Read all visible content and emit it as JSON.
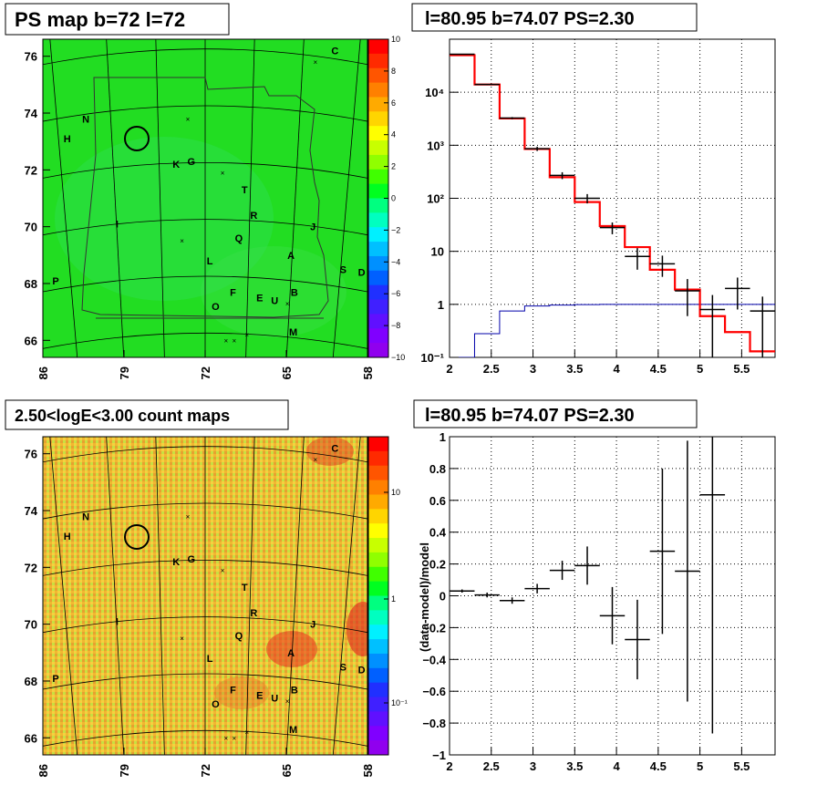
{
  "panels": {
    "ps_map": {
      "title": "PS map b=72 l=72",
      "xticks": [
        "86",
        "79",
        "72",
        "65",
        "58"
      ],
      "yticks": [
        "76",
        "74",
        "72",
        "70",
        "68",
        "66"
      ],
      "colorbar_labels": [
        "10",
        "8",
        "6",
        "4",
        "2",
        "0",
        "−2",
        "−4",
        "−6",
        "−8",
        "−10"
      ]
    },
    "count_map": {
      "title": "2.50<logE<3.00 count maps",
      "xticks": [
        "86",
        "79",
        "72",
        "65",
        "58"
      ],
      "yticks": [
        "76",
        "74",
        "72",
        "70",
        "68",
        "66"
      ],
      "colorbar_labels": [
        "10",
        "1",
        "10⁻¹"
      ]
    },
    "spectrum": {
      "title": "l=80.95 b=74.07 PS=2.30"
    },
    "residual": {
      "title": "l=80.95 b=74.07 PS=2.30",
      "ylabel": "(data-model)/model"
    }
  },
  "source_labels": [
    "C",
    "N",
    "H",
    "K",
    "G",
    "T",
    "R",
    "I",
    "J",
    "Q",
    "A",
    "L",
    "S",
    "D",
    "P",
    "F",
    "B",
    "O",
    "E",
    "U",
    "M"
  ],
  "colors": {
    "data": "#000000",
    "model": "#ff0000",
    "background_model": "#0000aa",
    "map_fill": "#22dd22"
  },
  "chart_data": [
    {
      "type": "heatmap",
      "title": "PS map b=72 l=72",
      "xlim": [
        86,
        58
      ],
      "ylim": [
        65.4,
        76.6
      ],
      "zlim": [
        -10,
        10
      ],
      "colorbar_ticks": [
        10,
        8,
        6,
        4,
        2,
        0,
        -2,
        -4,
        -6,
        -8,
        -10
      ],
      "markers": [
        {
          "label": "C",
          "x": 60.8,
          "y": 76.2
        },
        {
          "label": "N",
          "x": 82.3,
          "y": 73.8
        },
        {
          "label": "H",
          "x": 83.9,
          "y": 73.1
        },
        {
          "label": "K",
          "x": 74.5,
          "y": 72.2
        },
        {
          "label": "G",
          "x": 73.2,
          "y": 72.3
        },
        {
          "label": "T",
          "x": 68.6,
          "y": 71.3
        },
        {
          "label": "R",
          "x": 67.8,
          "y": 70.4
        },
        {
          "label": "I",
          "x": 79.6,
          "y": 70.1
        },
        {
          "label": "J",
          "x": 62.7,
          "y": 70.0
        },
        {
          "label": "Q",
          "x": 69.1,
          "y": 69.6
        },
        {
          "label": "A",
          "x": 64.6,
          "y": 69.0
        },
        {
          "label": "L",
          "x": 71.6,
          "y": 68.8
        },
        {
          "label": "S",
          "x": 60.1,
          "y": 68.5
        },
        {
          "label": "D",
          "x": 58.5,
          "y": 68.4
        },
        {
          "label": "P",
          "x": 84.9,
          "y": 68.1
        },
        {
          "label": "F",
          "x": 69.6,
          "y": 67.7
        },
        {
          "label": "B",
          "x": 64.3,
          "y": 67.7
        },
        {
          "label": "O",
          "x": 71.1,
          "y": 67.2
        },
        {
          "label": "E",
          "x": 67.3,
          "y": 67.5
        },
        {
          "label": "U",
          "x": 66.0,
          "y": 67.4
        },
        {
          "label": "M",
          "x": 64.4,
          "y": 66.3
        }
      ]
    },
    {
      "type": "heatmap",
      "title": "2.50<logE<3.00 count maps",
      "xlim": [
        86,
        58
      ],
      "ylim": [
        65.4,
        76.6
      ],
      "zlim": [
        0.05,
        30
      ],
      "zscale": "log",
      "colorbar_ticks": [
        10,
        1,
        0.1
      ]
    },
    {
      "type": "line",
      "title": "l=80.95 b=74.07 PS=2.30",
      "xlim": [
        2,
        5.9
      ],
      "ylim": [
        0.1,
        100000
      ],
      "yscale": "log",
      "grid": true,
      "xticks": [
        2,
        2.5,
        3,
        3.5,
        4,
        4.5,
        5,
        5.5
      ],
      "yticks": [
        0.1,
        1,
        10,
        100,
        1000,
        10000
      ],
      "ytick_labels": [
        "10⁻¹",
        "1",
        "10",
        "10²",
        "10³",
        "10⁴"
      ],
      "bin_edges": [
        2,
        2.3,
        2.6,
        2.9,
        3.2,
        3.5,
        3.8,
        4.1,
        4.4,
        4.7,
        5.0,
        5.3,
        5.6,
        5.9
      ],
      "series": [
        {
          "name": "model",
          "style": "step",
          "values": [
            50000,
            14000,
            3200,
            850,
            250,
            85,
            30,
            12,
            4.5,
            1.9,
            0.6,
            0.3,
            0.13
          ]
        },
        {
          "name": "background model",
          "style": "step",
          "values": [
            0.1,
            0.28,
            0.75,
            0.93,
            0.97,
            0.99,
            1.0,
            1.0,
            1.0,
            1.0,
            1.0,
            1.0,
            1.0
          ]
        },
        {
          "name": "data",
          "style": "errorbar",
          "x": [
            2.15,
            2.45,
            2.75,
            3.05,
            3.35,
            3.65,
            3.95,
            4.25,
            4.55,
            4.85,
            5.15,
            5.45,
            5.75
          ],
          "y": [
            52000,
            14000,
            3250,
            860,
            270,
            100,
            28,
            8,
            5.8,
            1.8,
            0.8,
            2.0,
            0.75
          ],
          "yerr_low": [
            500,
            300,
            150,
            80,
            40,
            20,
            7,
            3.5,
            2.5,
            1.2,
            0.7,
            1.2,
            0.65
          ],
          "yerr_high": [
            500,
            300,
            150,
            80,
            40,
            20,
            7,
            3.5,
            2.5,
            1.2,
            0.7,
            1.2,
            0.65
          ]
        }
      ]
    },
    {
      "type": "scatter",
      "title": "l=80.95 b=74.07 PS=2.30",
      "ylabel": "(data-model)/model",
      "xlim": [
        2,
        5.9
      ],
      "ylim": [
        -1,
        1
      ],
      "grid": true,
      "xticks": [
        2,
        2.5,
        3,
        3.5,
        4,
        4.5,
        5,
        5.5
      ],
      "yticks": [
        -1,
        -0.8,
        -0.6,
        -0.4,
        -0.2,
        0,
        0.2,
        0.4,
        0.6,
        0.8,
        1
      ],
      "series": [
        {
          "name": "residuals",
          "x": [
            2.15,
            2.45,
            2.75,
            3.05,
            3.35,
            3.65,
            3.95,
            4.25,
            4.55,
            4.85,
            5.15
          ],
          "y": [
            0.03,
            0.005,
            -0.03,
            0.045,
            0.16,
            0.19,
            -0.125,
            -0.275,
            0.28,
            0.155,
            0.635
          ],
          "yerr": [
            0.01,
            0.015,
            0.02,
            0.03,
            0.06,
            0.12,
            0.18,
            0.25,
            0.52,
            0.82,
            1.5
          ],
          "xerr": 0.15
        }
      ]
    }
  ]
}
